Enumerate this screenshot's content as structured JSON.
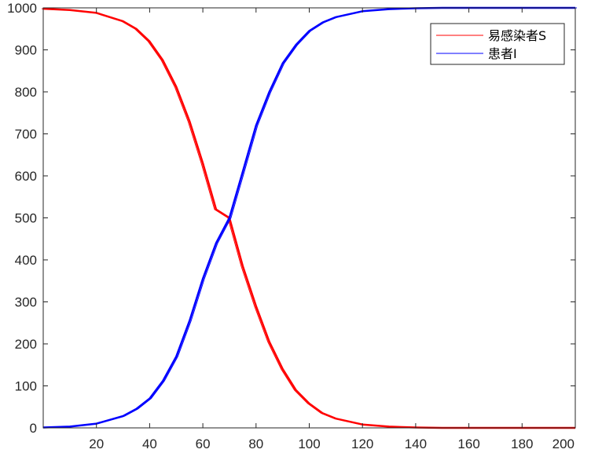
{
  "chart_data": {
    "type": "line",
    "title": "",
    "xlabel": "",
    "ylabel": "",
    "xlim": [
      0,
      200
    ],
    "ylim": [
      0,
      1000
    ],
    "x_ticks": [
      20,
      40,
      60,
      80,
      100,
      120,
      140,
      160,
      180,
      200
    ],
    "y_ticks": [
      0,
      100,
      200,
      300,
      400,
      500,
      600,
      700,
      800,
      900,
      1000
    ],
    "grid": false,
    "legend_position": "top-right",
    "x": [
      0,
      10,
      20,
      30,
      35,
      40,
      45,
      50,
      55,
      60,
      65,
      70,
      75,
      80,
      85,
      90,
      95,
      100,
      105,
      110,
      120,
      130,
      140,
      150,
      160,
      180,
      200
    ],
    "series": [
      {
        "name": "易感染者S",
        "color": "#ff0000",
        "values": [
          998,
          995,
          988,
          968,
          950,
          920,
          875,
          812,
          730,
          630,
          520,
          500,
          385,
          290,
          205,
          140,
          90,
          58,
          35,
          22,
          8,
          3,
          1,
          0,
          0,
          0,
          0
        ]
      },
      {
        "name": "患者I",
        "color": "#0000ff",
        "values": [
          1,
          3,
          10,
          28,
          45,
          70,
          112,
          170,
          255,
          355,
          440,
          500,
          610,
          720,
          800,
          868,
          912,
          945,
          965,
          978,
          992,
          997,
          999,
          1000,
          1000,
          1000,
          1000
        ]
      }
    ]
  }
}
